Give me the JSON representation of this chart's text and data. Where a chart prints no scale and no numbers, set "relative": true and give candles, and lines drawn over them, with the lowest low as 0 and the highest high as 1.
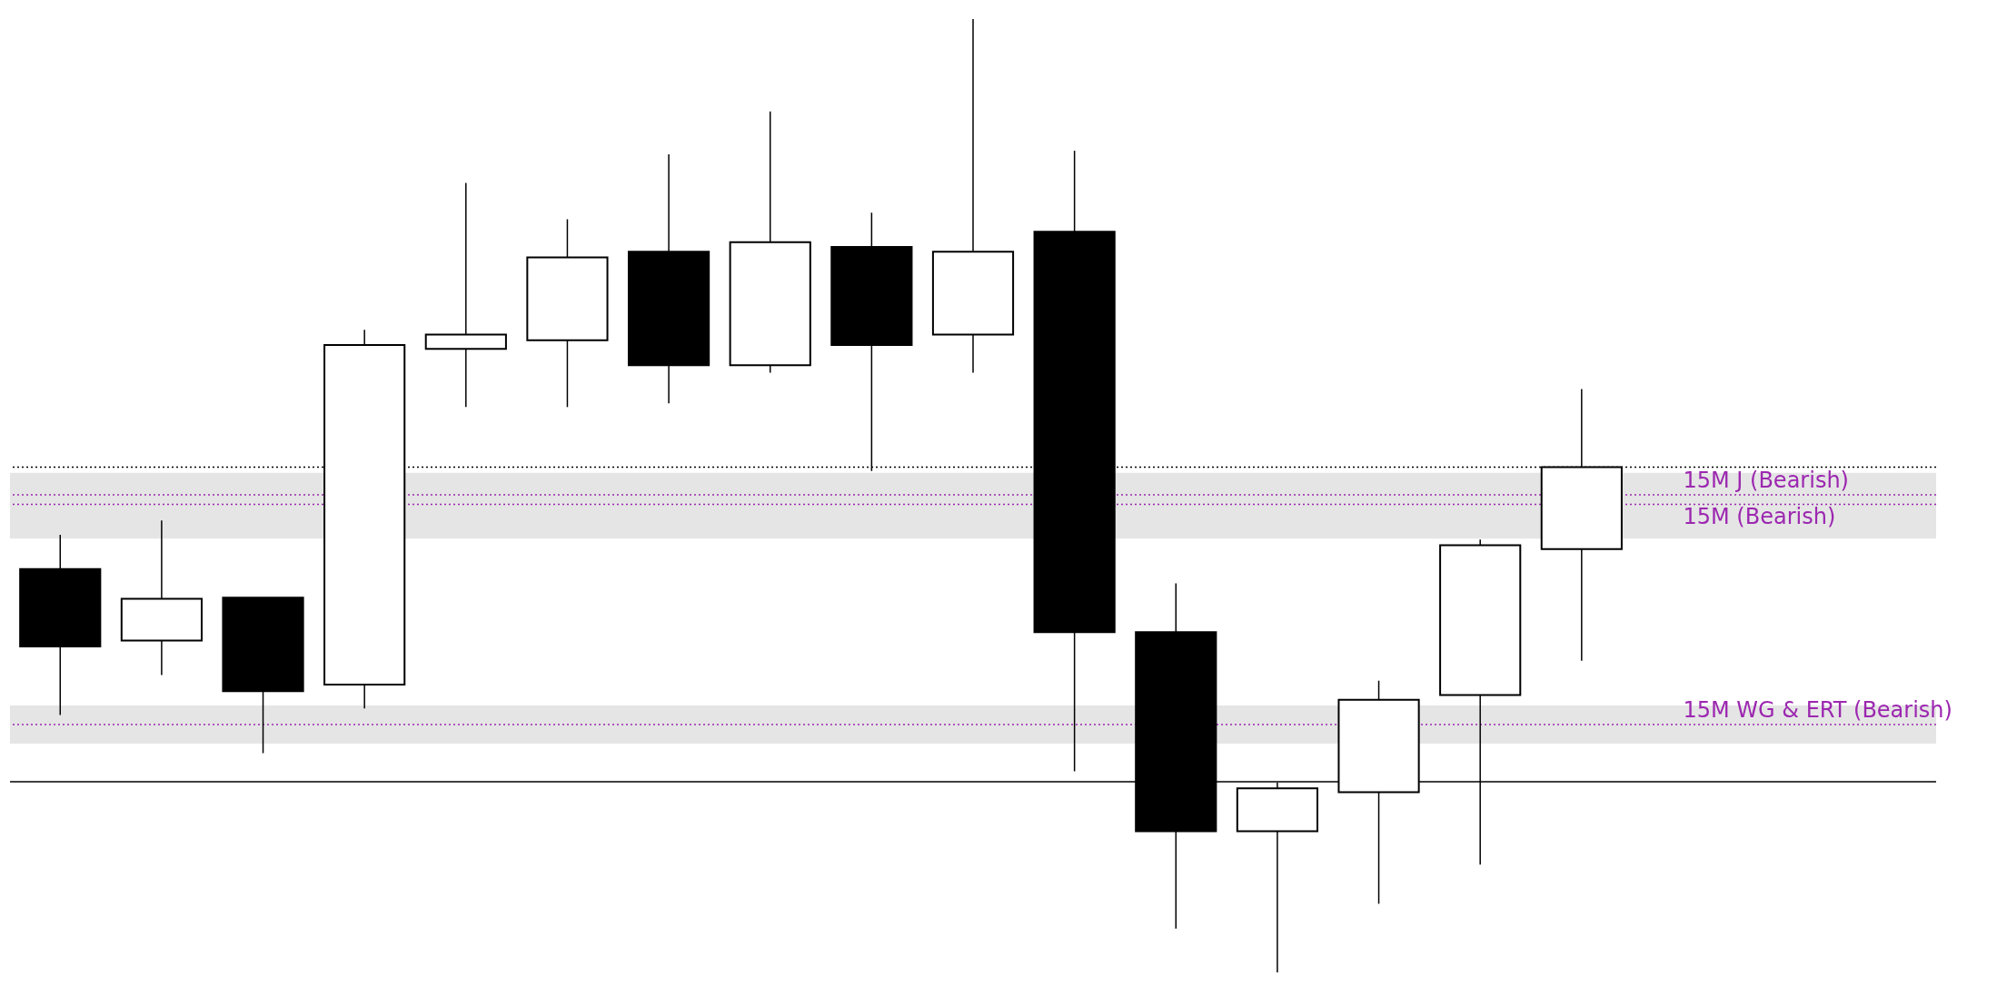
{
  "chart_data": {
    "type": "candlestick",
    "relative": true,
    "categories": [
      null,
      null,
      null,
      null,
      null,
      null,
      null,
      null,
      null,
      null,
      null,
      null,
      null,
      null,
      null,
      null
    ],
    "ohlc": [
      [
        0.423,
        0.459,
        0.27,
        0.342
      ],
      [
        0.348,
        0.474,
        0.312,
        0.392
      ],
      [
        0.393,
        0.393,
        0.23,
        0.295
      ],
      [
        0.302,
        0.674,
        0.277,
        0.658
      ],
      [
        0.654,
        0.828,
        0.593,
        0.669
      ],
      [
        0.663,
        0.79,
        0.593,
        0.75
      ],
      [
        0.756,
        0.858,
        0.597,
        0.637
      ],
      [
        0.637,
        0.903,
        0.629,
        0.766
      ],
      [
        0.761,
        0.797,
        0.526,
        0.658
      ],
      [
        0.669,
        1,
        0.629,
        0.756
      ],
      [
        0.777,
        0.862,
        0.211,
        0.357
      ],
      [
        0.357,
        0.408,
        0.046,
        0.148
      ],
      [
        0.148,
        0.199,
        0,
        0.193
      ],
      [
        0.189,
        0.306,
        0.072,
        0.286
      ],
      [
        0.291,
        0.454,
        0.113,
        0.448
      ],
      [
        0.444,
        0.612,
        0.327,
        0.53
      ]
    ],
    "colors": [
      "#000000",
      "#ffffff",
      "#000000",
      "#ffffff",
      "#ffffff",
      "#ffffff",
      "#000000",
      "#ffffff",
      "#000000",
      "#ffffff",
      "#000000",
      "#000000",
      "#ffffff",
      "#ffffff",
      "#ffffff",
      "#ffffff"
    ],
    "bands": [
      {
        "axis": "y",
        "from": 0.455,
        "to": 0.524,
        "color": "#e5e5e5"
      },
      {
        "axis": "y",
        "from": 0.24,
        "to": 0.28,
        "color": "#e5e5e5"
      }
    ],
    "ref_lines": [
      {
        "axis": "y",
        "value": 0.501,
        "label": "15M J (Bearish)",
        "color": "#9c27b0",
        "line_style": "dotted"
      },
      {
        "axis": "y",
        "value": 0.491,
        "label": "15M (Bearish)",
        "color": "#9c27b0",
        "line_style": "dotted"
      },
      {
        "axis": "y",
        "value": 0.26,
        "label": "15M WG & ERT (Bearish)",
        "color": "#9c27b0",
        "line_style": "dotted"
      },
      {
        "axis": "y",
        "value": 0.2,
        "color": "#000000",
        "line_style": "solid"
      },
      {
        "axis": "y",
        "value": 0.53,
        "color": "#000000",
        "line_style": "dotted"
      }
    ]
  }
}
